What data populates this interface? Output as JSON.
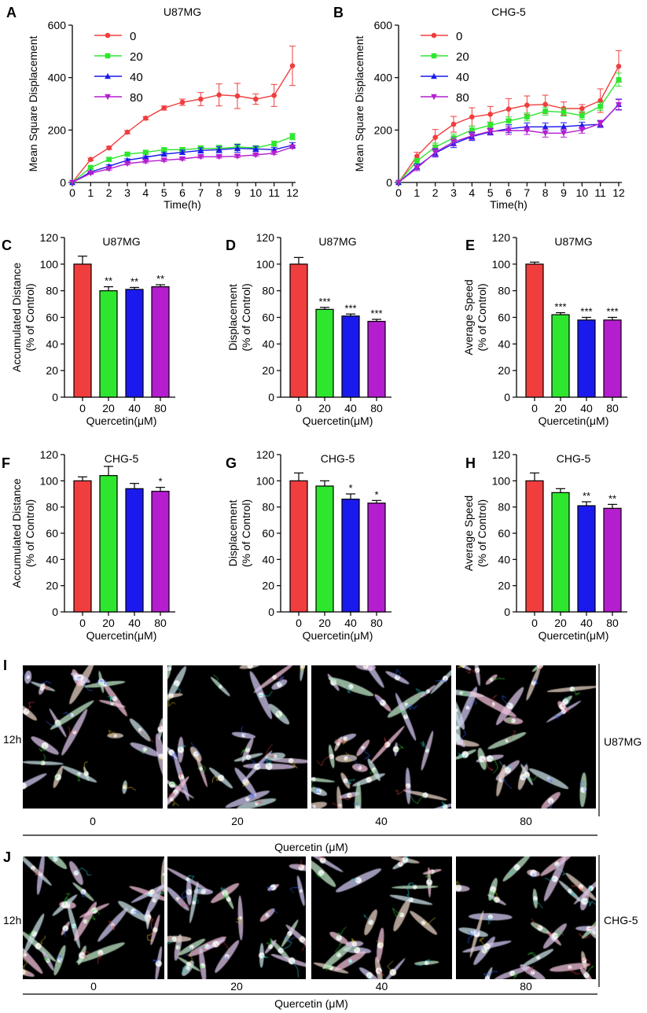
{
  "series_colors": [
    "#f03e3e",
    "#2ee62e",
    "#1a1aee",
    "#b41ecf"
  ],
  "chart_data": [
    {
      "panel": "A",
      "type": "line",
      "title": "U87MG",
      "xlabel": "Time(h)",
      "ylabel": "Mean Square Displacement",
      "x": [
        0,
        1,
        2,
        3,
        4,
        5,
        6,
        7,
        8,
        9,
        10,
        11,
        12
      ],
      "xlim": [
        0,
        12
      ],
      "ylim": [
        0,
        600
      ],
      "yticks": [
        0,
        200,
        400,
        600
      ],
      "legend_position": "top-left",
      "grid": false,
      "series": [
        {
          "name": "0",
          "marker": "circle",
          "values": [
            0,
            88,
            132,
            192,
            245,
            284,
            306,
            318,
            334,
            330,
            318,
            332,
            445
          ],
          "errors": [
            0,
            5,
            6,
            6,
            6,
            8,
            12,
            25,
            42,
            48,
            20,
            42,
            75
          ]
        },
        {
          "name": "20",
          "marker": "square",
          "values": [
            0,
            57,
            88,
            108,
            115,
            125,
            125,
            130,
            130,
            135,
            132,
            148,
            175
          ],
          "errors": [
            0,
            4,
            6,
            6,
            6,
            6,
            8,
            10,
            12,
            12,
            8,
            10,
            12
          ]
        },
        {
          "name": "40",
          "marker": "triangle-up",
          "values": [
            0,
            40,
            62,
            85,
            96,
            108,
            115,
            122,
            125,
            130,
            128,
            125,
            142
          ],
          "errors": [
            0,
            4,
            5,
            5,
            5,
            6,
            8,
            10,
            12,
            15,
            10,
            8,
            10
          ]
        },
        {
          "name": "80",
          "marker": "triangle-down",
          "values": [
            0,
            35,
            52,
            72,
            80,
            85,
            90,
            98,
            98,
            100,
            105,
            112,
            135
          ],
          "errors": [
            0,
            4,
            5,
            5,
            5,
            5,
            5,
            5,
            5,
            5,
            5,
            5,
            5
          ]
        }
      ]
    },
    {
      "panel": "B",
      "type": "line",
      "title": "CHG-5",
      "xlabel": "Time(h)",
      "ylabel": "Mean Square Displacement",
      "x": [
        0,
        1,
        2,
        3,
        4,
        5,
        6,
        7,
        8,
        9,
        10,
        11,
        12
      ],
      "xlim": [
        0,
        12
      ],
      "ylim": [
        0,
        600
      ],
      "yticks": [
        0,
        200,
        400,
        600
      ],
      "legend_position": "top-left",
      "grid": false,
      "series": [
        {
          "name": "0",
          "marker": "circle",
          "values": [
            0,
            100,
            172,
            222,
            250,
            260,
            280,
            295,
            298,
            282,
            282,
            312,
            443
          ],
          "errors": [
            0,
            15,
            30,
            30,
            35,
            30,
            40,
            35,
            35,
            25,
            15,
            45,
            60
          ]
        },
        {
          "name": "20",
          "marker": "square",
          "values": [
            0,
            82,
            135,
            170,
            200,
            218,
            235,
            250,
            272,
            268,
            255,
            290,
            392
          ],
          "errors": [
            0,
            10,
            15,
            15,
            15,
            12,
            15,
            15,
            15,
            15,
            15,
            15,
            25
          ]
        },
        {
          "name": "40",
          "marker": "triangle-up",
          "values": [
            0,
            60,
            112,
            148,
            175,
            193,
            205,
            212,
            212,
            213,
            218,
            222,
            298
          ],
          "errors": [
            0,
            10,
            15,
            15,
            15,
            12,
            15,
            15,
            15,
            15,
            12,
            12,
            20
          ]
        },
        {
          "name": "80",
          "marker": "triangle-down",
          "values": [
            0,
            55,
            115,
            155,
            178,
            195,
            198,
            198,
            188,
            188,
            200,
            225,
            296
          ],
          "errors": [
            0,
            10,
            15,
            15,
            15,
            12,
            15,
            15,
            15,
            15,
            12,
            12,
            20
          ]
        }
      ]
    },
    {
      "panel": "C",
      "type": "bar",
      "title": "U87MG",
      "ylabel": "Accumulated Distance\n(% of Control)",
      "xlabel": "Quercetin(μM)",
      "categories": [
        "0",
        "20",
        "40",
        "80"
      ],
      "values": [
        100,
        80,
        81,
        83
      ],
      "errors": [
        6,
        3,
        1.5,
        1.5
      ],
      "significance": [
        "",
        "**",
        "**",
        "**"
      ],
      "ylim": [
        0,
        120
      ],
      "yticks": [
        0,
        20,
        40,
        60,
        80,
        100,
        120
      ]
    },
    {
      "panel": "D",
      "type": "bar",
      "title": "U87MG",
      "ylabel": "Displacement\n(% of Control)",
      "xlabel": "Quercetin(μM)",
      "categories": [
        "0",
        "20",
        "40",
        "80"
      ],
      "values": [
        100,
        66,
        61,
        57
      ],
      "errors": [
        5,
        1.5,
        1.5,
        1.5
      ],
      "significance": [
        "",
        "***",
        "***",
        "***"
      ],
      "ylim": [
        0,
        120
      ],
      "yticks": [
        0,
        20,
        40,
        60,
        80,
        100,
        120
      ]
    },
    {
      "panel": "E",
      "type": "bar",
      "title": "U87MG",
      "ylabel": "Average Speed\n(% of Control)",
      "xlabel": "Quercetin(μM)",
      "categories": [
        "0",
        "20",
        "40",
        "80"
      ],
      "values": [
        100,
        62,
        58,
        58
      ],
      "errors": [
        1.5,
        1.5,
        2,
        2
      ],
      "significance": [
        "",
        "***",
        "***",
        "***"
      ],
      "ylim": [
        0,
        120
      ],
      "yticks": [
        0,
        20,
        40,
        60,
        80,
        100,
        120
      ]
    },
    {
      "panel": "F",
      "type": "bar",
      "title": "CHG-5",
      "ylabel": "Accumulated Distance\n(% of Control)",
      "xlabel": "Quercetin(μM)",
      "categories": [
        "0",
        "20",
        "40",
        "80"
      ],
      "values": [
        100,
        104,
        94,
        92
      ],
      "errors": [
        3,
        7,
        4,
        3
      ],
      "significance": [
        "",
        "",
        "",
        "*"
      ],
      "ylim": [
        0,
        120
      ],
      "yticks": [
        0,
        20,
        40,
        60,
        80,
        100,
        120
      ]
    },
    {
      "panel": "G",
      "type": "bar",
      "title": "CHG-5",
      "ylabel": "Displacement\n(% of Control)",
      "xlabel": "Quercetin(μM)",
      "categories": [
        "0",
        "20",
        "40",
        "80"
      ],
      "values": [
        100,
        96,
        86,
        83
      ],
      "errors": [
        6,
        4,
        4,
        2
      ],
      "significance": [
        "",
        "",
        "*",
        "*"
      ],
      "ylim": [
        0,
        120
      ],
      "yticks": [
        0,
        20,
        40,
        60,
        80,
        100,
        120
      ]
    },
    {
      "panel": "H",
      "type": "bar",
      "title": "CHG-5",
      "ylabel": "Average Speed\n(% of Control)",
      "xlabel": "Quercetin(μM)",
      "categories": [
        "0",
        "20",
        "40",
        "80"
      ],
      "values": [
        100,
        91,
        81,
        79
      ],
      "errors": [
        6,
        3,
        3,
        3
      ],
      "significance": [
        "",
        "",
        "**",
        "**"
      ],
      "ylim": [
        0,
        120
      ],
      "yticks": [
        0,
        20,
        40,
        60,
        80,
        100,
        120
      ]
    }
  ],
  "micrographs": [
    {
      "panel": "I",
      "time_label": "12h",
      "cell_line": "U87MG",
      "concentrations": [
        "0",
        "20",
        "40",
        "80"
      ],
      "axis_label": "Quercetin  (μM)"
    },
    {
      "panel": "J",
      "time_label": "12h",
      "cell_line": "CHG-5",
      "concentrations": [
        "0",
        "20",
        "40",
        "80"
      ],
      "axis_label": "Quercetin  (μM)"
    }
  ]
}
